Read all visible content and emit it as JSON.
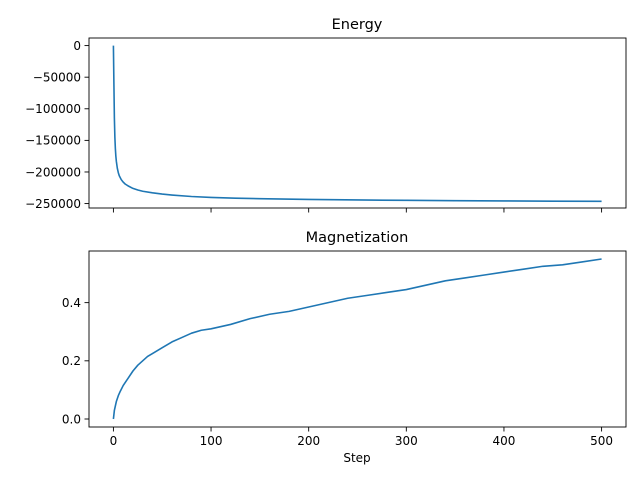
{
  "chart_data": [
    {
      "type": "line",
      "title": "Energy",
      "xlabel": "",
      "ylabel": "",
      "xlim": [
        -25,
        525
      ],
      "ylim": [
        -257000,
        12000
      ],
      "xticks": [
        0,
        100,
        200,
        300,
        400,
        500
      ],
      "show_xtick_labels": false,
      "yticks": [
        0,
        -50000,
        -100000,
        -150000,
        -200000,
        -250000
      ],
      "ytick_labels": [
        "0",
        "−50000",
        "−100000",
        "−150000",
        "−200000",
        "−250000"
      ],
      "grid": false,
      "series": [
        {
          "color": "#1f77b4",
          "x": [
            0,
            0.5,
            1,
            1.5,
            2,
            2.5,
            3,
            4,
            5,
            6,
            8,
            10,
            12,
            15,
            20,
            25,
            30,
            40,
            50,
            60,
            80,
            100,
            125,
            150,
            200,
            250,
            300,
            350,
            400,
            450,
            500
          ],
          "y": [
            0,
            -60000,
            -115000,
            -145000,
            -163000,
            -175000,
            -183000,
            -194000,
            -201000,
            -206000,
            -212000,
            -216000,
            -219000,
            -222000,
            -226000,
            -228500,
            -230500,
            -233000,
            -235000,
            -236500,
            -238800,
            -240300,
            -241500,
            -242300,
            -243500,
            -244300,
            -244900,
            -245400,
            -245800,
            -246200,
            -246500
          ]
        }
      ]
    },
    {
      "type": "line",
      "title": "Magnetization",
      "xlabel": "Step",
      "ylabel": "",
      "xlim": [
        -25,
        525
      ],
      "ylim": [
        -0.0275,
        0.5775
      ],
      "xticks": [
        0,
        100,
        200,
        300,
        400,
        500
      ],
      "xtick_labels": [
        "0",
        "100",
        "200",
        "300",
        "400",
        "500"
      ],
      "yticks": [
        0.0,
        0.2,
        0.4
      ],
      "ytick_labels": [
        "0.0",
        "0.2",
        "0.4"
      ],
      "grid": false,
      "series": [
        {
          "color": "#1f77b4",
          "x": [
            0,
            1,
            2,
            3,
            5,
            7,
            10,
            15,
            20,
            25,
            30,
            35,
            40,
            50,
            60,
            70,
            80,
            90,
            100,
            120,
            140,
            160,
            180,
            200,
            220,
            240,
            260,
            280,
            300,
            320,
            340,
            360,
            380,
            400,
            420,
            440,
            460,
            480,
            500
          ],
          "y": [
            0.0,
            0.03,
            0.045,
            0.06,
            0.08,
            0.095,
            0.115,
            0.14,
            0.165,
            0.185,
            0.2,
            0.215,
            0.225,
            0.245,
            0.265,
            0.28,
            0.295,
            0.305,
            0.31,
            0.325,
            0.345,
            0.36,
            0.37,
            0.385,
            0.4,
            0.415,
            0.425,
            0.435,
            0.445,
            0.46,
            0.475,
            0.485,
            0.495,
            0.505,
            0.515,
            0.525,
            0.53,
            0.54,
            0.55
          ]
        }
      ]
    }
  ]
}
